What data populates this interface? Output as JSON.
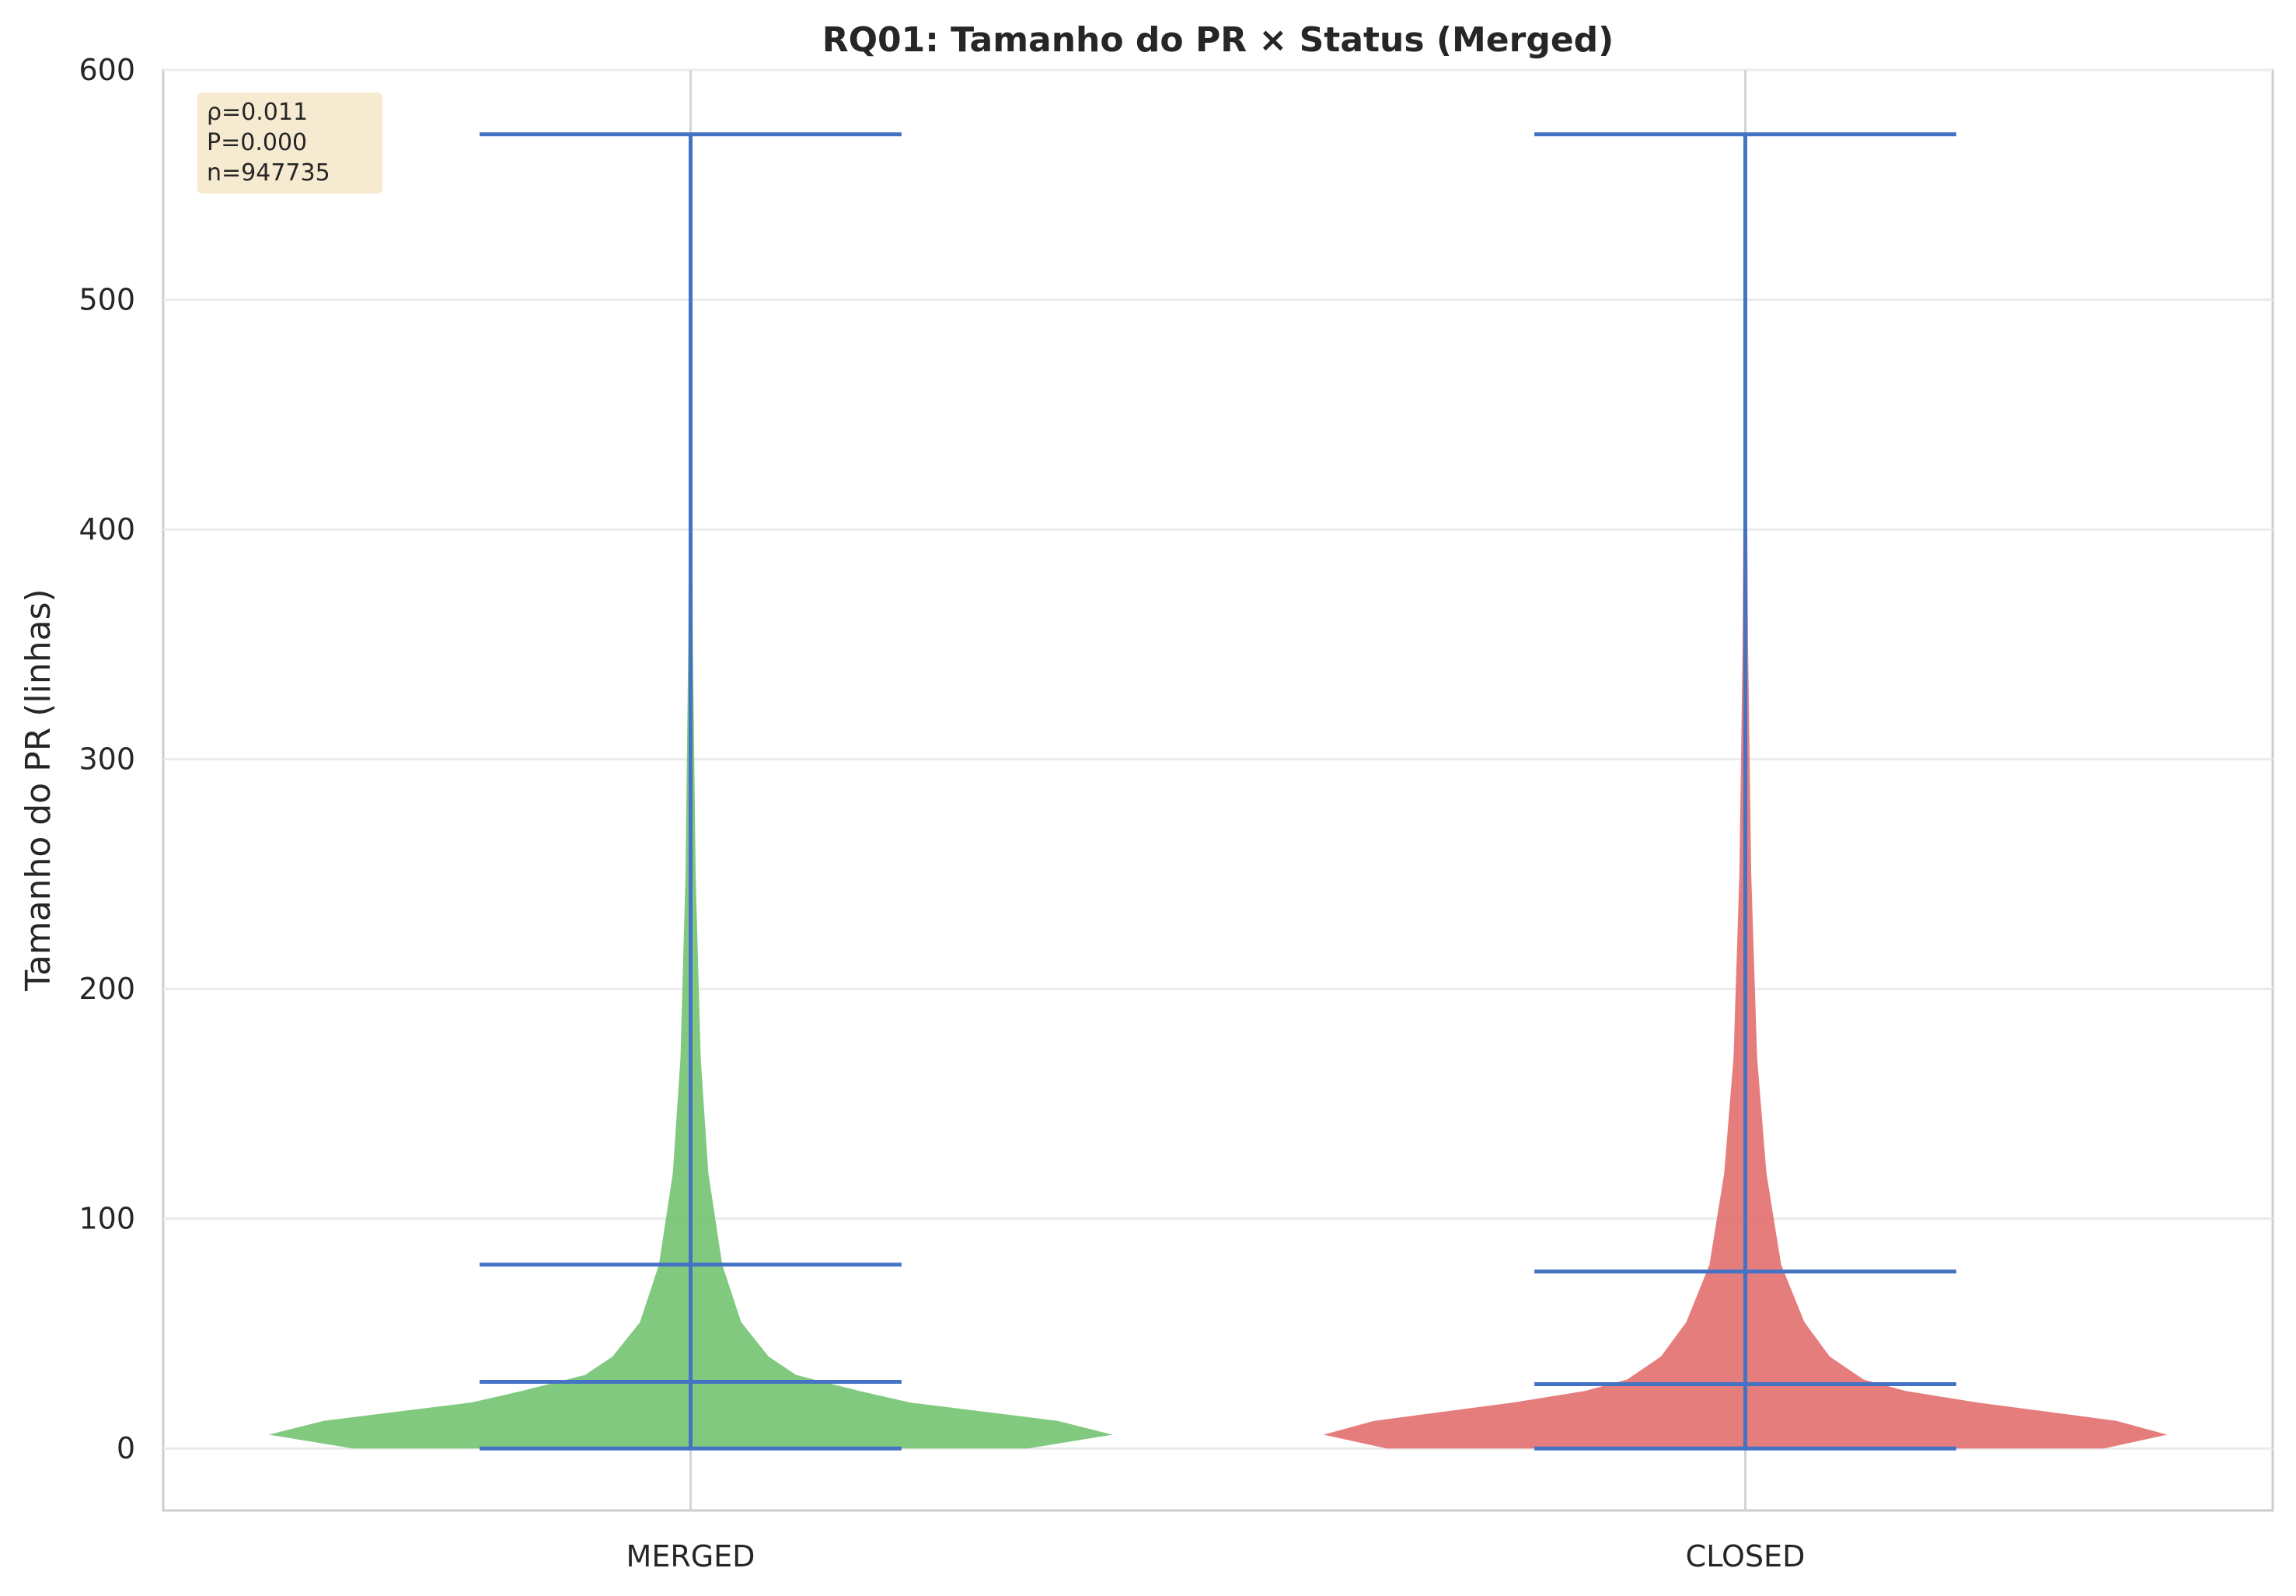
{
  "chart_data": {
    "type": "violin",
    "title": "RQ01: Tamanho do PR × Status (Merged)",
    "xlabel": "",
    "ylabel": "Tamanho do PR (linhas)",
    "ylim": [
      -27,
      600
    ],
    "yticks": [
      0,
      100,
      200,
      300,
      400,
      500,
      600
    ],
    "ytick_labels": [
      "0",
      "100",
      "200",
      "300",
      "400",
      "500",
      "600"
    ],
    "categories": [
      "MERGED",
      "CLOSED"
    ],
    "grid": true,
    "colors": {
      "MERGED": "#6abf69",
      "CLOSED": "#e06666",
      "lines": "#4472c4"
    },
    "series": [
      {
        "category": "MERGED",
        "min": 0,
        "q1": 29,
        "q3": 80,
        "max": 572,
        "density_profile": [
          [
            0,
            0.8
          ],
          [
            6,
            1.0
          ],
          [
            12,
            0.87
          ],
          [
            20,
            0.52
          ],
          [
            25,
            0.4
          ],
          [
            32,
            0.25
          ],
          [
            40,
            0.185
          ],
          [
            55,
            0.12
          ],
          [
            80,
            0.075
          ],
          [
            120,
            0.042
          ],
          [
            170,
            0.024
          ],
          [
            250,
            0.012
          ],
          [
            350,
            0.0055
          ],
          [
            450,
            0.003
          ],
          [
            572,
            0.0
          ]
        ]
      },
      {
        "category": "CLOSED",
        "min": 0,
        "q1": 28,
        "q3": 77,
        "max": 572,
        "density_profile": [
          [
            0,
            0.85
          ],
          [
            6,
            1.0
          ],
          [
            12,
            0.88
          ],
          [
            20,
            0.55
          ],
          [
            25,
            0.38
          ],
          [
            30,
            0.28
          ],
          [
            40,
            0.2
          ],
          [
            55,
            0.14
          ],
          [
            80,
            0.085
          ],
          [
            120,
            0.05
          ],
          [
            170,
            0.028
          ],
          [
            250,
            0.014
          ],
          [
            350,
            0.0065
          ],
          [
            450,
            0.003
          ],
          [
            572,
            0.0
          ]
        ]
      }
    ],
    "annotation": {
      "lines": [
        "ρ=0.011",
        "P=0.000",
        "n=947735"
      ],
      "box_color": "#f5e6c8",
      "location": "top-left"
    }
  }
}
